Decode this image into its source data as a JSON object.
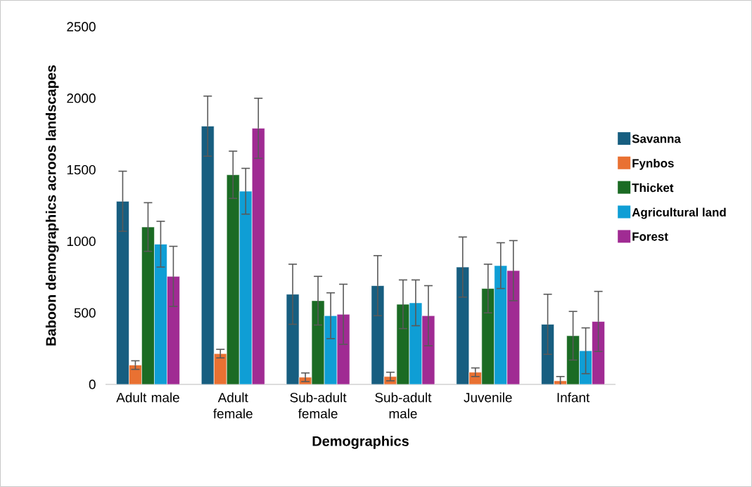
{
  "chart_data": {
    "type": "bar",
    "xlabel": "Demographics",
    "ylabel": "Baboon demographics acroos landscapes",
    "categories": [
      "Adult male",
      "Adult female",
      "Sub-adult female",
      "Sub-adult male",
      "Juvenile",
      "Infant"
    ],
    "series": [
      {
        "name": "Savanna",
        "color": "#175e80",
        "values": [
          1280,
          1805,
          630,
          690,
          820,
          420
        ],
        "errors": [
          210,
          210,
          210,
          210,
          210,
          210
        ]
      },
      {
        "name": "Fynbos",
        "color": "#e97132",
        "values": [
          135,
          215,
          50,
          55,
          85,
          25
        ],
        "errors": [
          30,
          30,
          30,
          30,
          30,
          30
        ]
      },
      {
        "name": "Thicket",
        "color": "#1b6b24",
        "values": [
          1100,
          1465,
          585,
          560,
          670,
          340
        ],
        "errors": [
          170,
          165,
          170,
          170,
          170,
          170
        ]
      },
      {
        "name": "Agricultural land",
        "color": "#0f9ed5",
        "values": [
          980,
          1350,
          480,
          570,
          830,
          235
        ],
        "errors": [
          160,
          160,
          160,
          160,
          160,
          160
        ]
      },
      {
        "name": "Forest",
        "color": "#a02b93",
        "values": [
          755,
          1790,
          490,
          480,
          795,
          440
        ],
        "errors": [
          210,
          210,
          210,
          210,
          210,
          210
        ]
      }
    ],
    "ylim": [
      0,
      2500
    ],
    "yticks": [
      0,
      500,
      1000,
      1500,
      2000,
      2500
    ],
    "legend": "right"
  }
}
